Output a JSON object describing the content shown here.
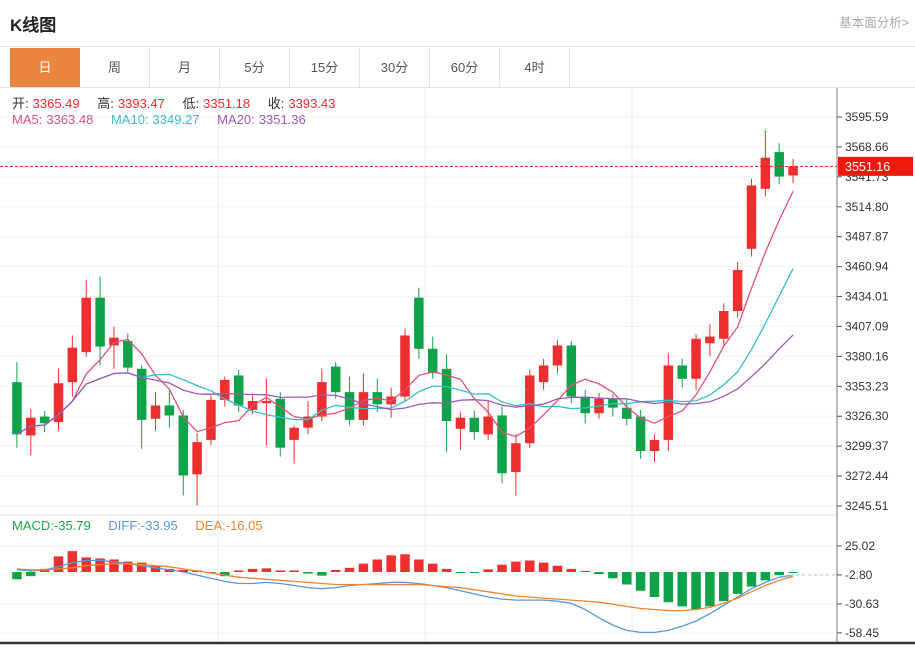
{
  "header": {
    "title": "K线图",
    "link": "基本面分析>"
  },
  "tabs": {
    "items": [
      "日",
      "周",
      "月",
      "5分",
      "15分",
      "30分",
      "60分",
      "4时"
    ],
    "active_index": 0
  },
  "ohlc": {
    "open_label": "开:",
    "open": "3365.49",
    "high_label": "高:",
    "high": "3393.47",
    "low_label": "低:",
    "low": "3351.18",
    "close_label": "收:",
    "close": "3393.43"
  },
  "ma": {
    "ma5_label": "MA5:",
    "ma5": "3363.48",
    "ma10_label": "MA10:",
    "ma10": "3349.27",
    "ma20_label": "MA20:",
    "ma20": "3351.36"
  },
  "macd_legend": {
    "macd_label": "MACD:",
    "macd": "-35.79",
    "diff_label": "DIFF:",
    "diff": "-33.95",
    "dea_label": "DEA:",
    "dea": "-16.05"
  },
  "price_marker": {
    "value": "3551.16",
    "numeric": 3551.16
  },
  "colors": {
    "up": "#ed2f2f",
    "down": "#0fa349",
    "ma5": "#e0527f",
    "ma10": "#35bfc7",
    "ma20": "#9c59b8",
    "diff": "#5a96d8",
    "dea": "#ee8433",
    "macd_text": "#1fa64a",
    "badge": "#ed1a0d",
    "tab_active": "#ed8540",
    "axis_text": "#333333",
    "axis_line": "#777777",
    "grid": "#f3f3f3",
    "vgrid": "#ededed",
    "pane_split": "#e6e6e6",
    "dashed_tail": "#b7d8e8",
    "bottom_border": "#333333"
  },
  "chart_data": {
    "type": "candlestick+macd",
    "title": "K线图 daily candlestick with MA5/MA10/MA20 overlays and MACD sub-chart",
    "legend_position": "top-left",
    "grid": true,
    "y_axis_labels": [
      "3595.59",
      "3568.66",
      "3541.73",
      "3514.80",
      "3487.87",
      "3460.94",
      "3434.01",
      "3407.09",
      "3380.16",
      "3353.23",
      "3326.30",
      "3299.37",
      "3272.44",
      "3245.51"
    ],
    "y_range": [
      3245.51,
      3595.59
    ],
    "current_price": 3551.16,
    "up_means": "close >= open (red, Chinese convention)",
    "candles_ohlc": [
      [
        3357,
        3375,
        3298,
        3310
      ],
      [
        3309,
        3333,
        3291,
        3325
      ],
      [
        3326,
        3331,
        3312,
        3320
      ],
      [
        3321,
        3369,
        3313,
        3356
      ],
      [
        3357,
        3399,
        3344,
        3388
      ],
      [
        3384,
        3449,
        3380,
        3433
      ],
      [
        3433,
        3452,
        3372,
        3389
      ],
      [
        3390,
        3407,
        3369,
        3397
      ],
      [
        3394,
        3401,
        3365,
        3370
      ],
      [
        3369,
        3372,
        3297,
        3323
      ],
      [
        3324,
        3348,
        3313,
        3336
      ],
      [
        3336,
        3351,
        3316,
        3327
      ],
      [
        3327,
        3332,
        3255,
        3273
      ],
      [
        3274,
        3311,
        3246,
        3303
      ],
      [
        3305,
        3345,
        3300,
        3341
      ],
      [
        3341,
        3362,
        3335,
        3359
      ],
      [
        3363,
        3368,
        3330,
        3336
      ],
      [
        3332,
        3345,
        3328,
        3340
      ],
      [
        3338,
        3360,
        3300,
        3340
      ],
      [
        3342,
        3348,
        3290,
        3298
      ],
      [
        3305,
        3318,
        3284,
        3316
      ],
      [
        3316,
        3340,
        3310,
        3326
      ],
      [
        3326,
        3369,
        3322,
        3357
      ],
      [
        3371,
        3375,
        3342,
        3348
      ],
      [
        3348,
        3362,
        3318,
        3323
      ],
      [
        3323,
        3365,
        3318,
        3348
      ],
      [
        3348,
        3360,
        3330,
        3337
      ],
      [
        3337,
        3352,
        3325,
        3344
      ],
      [
        3344,
        3405,
        3340,
        3399
      ],
      [
        3433,
        3442,
        3378,
        3387
      ],
      [
        3387,
        3398,
        3360,
        3365
      ],
      [
        3369,
        3382,
        3294,
        3322
      ],
      [
        3315,
        3330,
        3296,
        3325
      ],
      [
        3325,
        3331,
        3305,
        3312
      ],
      [
        3310,
        3340,
        3305,
        3326
      ],
      [
        3327,
        3335,
        3266,
        3275
      ],
      [
        3276,
        3310,
        3255,
        3302
      ],
      [
        3302,
        3368,
        3298,
        3363
      ],
      [
        3357,
        3378,
        3350,
        3372
      ],
      [
        3372,
        3395,
        3365,
        3390
      ],
      [
        3390,
        3394,
        3338,
        3344
      ],
      [
        3344,
        3350,
        3320,
        3329
      ],
      [
        3329,
        3347,
        3324,
        3342
      ],
      [
        3342,
        3346,
        3326,
        3334
      ],
      [
        3334,
        3342,
        3318,
        3324
      ],
      [
        3326,
        3332,
        3288,
        3295
      ],
      [
        3295,
        3310,
        3285,
        3305
      ],
      [
        3305,
        3383,
        3295,
        3372
      ],
      [
        3372,
        3378,
        3352,
        3360
      ],
      [
        3360,
        3400,
        3350,
        3396
      ],
      [
        3392,
        3409,
        3380,
        3398
      ],
      [
        3396,
        3428,
        3390,
        3421
      ],
      [
        3421,
        3465,
        3415,
        3458
      ],
      [
        3477,
        3540,
        3470,
        3534
      ],
      [
        3531,
        3584,
        3524,
        3559
      ],
      [
        3564,
        3572,
        3535,
        3542
      ],
      [
        3543,
        3558,
        3536,
        3551.16
      ]
    ],
    "ma_periods": [
      5,
      10,
      20
    ],
    "macd": {
      "y_axis_labels": [
        "25.02",
        "-2.80",
        "-30.63",
        "-58.45"
      ],
      "histogram": [
        -7,
        -4,
        3,
        15,
        20,
        14,
        13,
        12,
        10,
        9,
        6,
        3,
        2,
        1.5,
        -1,
        -4,
        1.5,
        3,
        3.5,
        1.5,
        1.5,
        -1.5,
        -3.5,
        2,
        4,
        8,
        12,
        16,
        17,
        12,
        8,
        3,
        -0.5,
        -1,
        2.5,
        7,
        10,
        11,
        9,
        6,
        3,
        1,
        -2,
        -6,
        -12,
        -18,
        -24,
        -29,
        -33,
        -35.8,
        -33,
        -28,
        -21,
        -14,
        -8,
        -3,
        -1
      ],
      "diff": [
        2,
        1,
        2,
        5,
        9,
        11,
        11,
        10,
        8,
        6,
        4,
        2,
        0,
        -3,
        -6,
        -9,
        -11,
        -11,
        -10,
        -11,
        -13,
        -15,
        -16,
        -15,
        -13,
        -12,
        -11,
        -10,
        -10,
        -11,
        -13,
        -15,
        -18,
        -21,
        -24,
        -26,
        -27,
        -27,
        -27,
        -28,
        -30,
        -36,
        -44,
        -51,
        -56,
        -58,
        -58,
        -56,
        -52,
        -47,
        -40,
        -32,
        -24,
        -16,
        -10,
        -5,
        -3
      ],
      "dea": [
        3,
        2,
        2,
        3,
        4,
        6,
        7,
        8,
        8,
        7,
        6,
        5,
        3,
        1,
        -1,
        -3,
        -5,
        -6,
        -7,
        -8,
        -9,
        -10,
        -11,
        -12,
        -12,
        -12,
        -12,
        -12,
        -12,
        -12,
        -13,
        -14,
        -15,
        -17,
        -19,
        -21,
        -23,
        -24,
        -25,
        -26,
        -27,
        -28,
        -29,
        -31,
        -33,
        -35,
        -36,
        -37,
        -37,
        -36,
        -34,
        -30,
        -25,
        -19,
        -13,
        -8,
        -4
      ]
    }
  }
}
